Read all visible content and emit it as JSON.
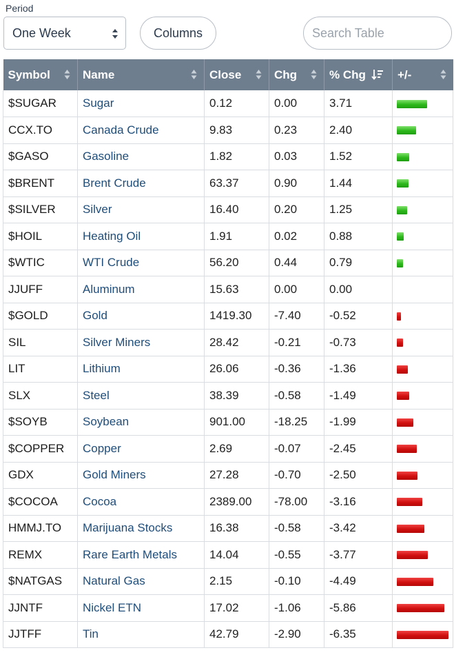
{
  "controls": {
    "period_label": "Period",
    "period_value": "One Week",
    "columns_label": "Columns",
    "search_placeholder": "Search Table"
  },
  "table": {
    "headers": [
      "Symbol",
      "Name",
      "Close",
      "Chg",
      "% Chg",
      "+/-"
    ],
    "sorted_column": "% Chg",
    "sort_direction": "descending",
    "colors": {
      "up": "#2db81b",
      "down": "#d10f0f",
      "header_bg": "#6f7e8e",
      "name_link": "#1f4d7a"
    },
    "rows": [
      {
        "symbol": "$SUGAR",
        "name": "Sugar",
        "close": "0.12",
        "chg": "0.00",
        "pct": "3.71"
      },
      {
        "symbol": "CCX.TO",
        "name": "Canada Crude",
        "close": "9.83",
        "chg": "0.23",
        "pct": "2.40"
      },
      {
        "symbol": "$GASO",
        "name": "Gasoline",
        "close": "1.82",
        "chg": "0.03",
        "pct": "1.52"
      },
      {
        "symbol": "$BRENT",
        "name": "Brent Crude",
        "close": "63.37",
        "chg": "0.90",
        "pct": "1.44"
      },
      {
        "symbol": "$SILVER",
        "name": "Silver",
        "close": "16.40",
        "chg": "0.20",
        "pct": "1.25"
      },
      {
        "symbol": "$HOIL",
        "name": "Heating Oil",
        "close": "1.91",
        "chg": "0.02",
        "pct": "0.88"
      },
      {
        "symbol": "$WTIC",
        "name": "WTI Crude",
        "close": "56.20",
        "chg": "0.44",
        "pct": "0.79"
      },
      {
        "symbol": "JJUFF",
        "name": "Aluminum",
        "close": "15.63",
        "chg": "0.00",
        "pct": "0.00"
      },
      {
        "symbol": "$GOLD",
        "name": "Gold",
        "close": "1419.30",
        "chg": "-7.40",
        "pct": "-0.52"
      },
      {
        "symbol": "SIL",
        "name": "Silver Miners",
        "close": "28.42",
        "chg": "-0.21",
        "pct": "-0.73"
      },
      {
        "symbol": "LIT",
        "name": "Lithium",
        "close": "26.06",
        "chg": "-0.36",
        "pct": "-1.36"
      },
      {
        "symbol": "SLX",
        "name": "Steel",
        "close": "38.39",
        "chg": "-0.58",
        "pct": "-1.49"
      },
      {
        "symbol": "$SOYB",
        "name": "Soybean",
        "close": "901.00",
        "chg": "-18.25",
        "pct": "-1.99"
      },
      {
        "symbol": "$COPPER",
        "name": "Copper",
        "close": "2.69",
        "chg": "-0.07",
        "pct": "-2.45"
      },
      {
        "symbol": "GDX",
        "name": "Gold Miners",
        "close": "27.28",
        "chg": "-0.70",
        "pct": "-2.50"
      },
      {
        "symbol": "$COCOA",
        "name": "Cocoa",
        "close": "2389.00",
        "chg": "-78.00",
        "pct": "-3.16"
      },
      {
        "symbol": "HMMJ.TO",
        "name": "Marijuana Stocks",
        "close": "16.38",
        "chg": "-0.58",
        "pct": "-3.42"
      },
      {
        "symbol": "REMX",
        "name": "Rare Earth Metals",
        "close": "14.04",
        "chg": "-0.55",
        "pct": "-3.77"
      },
      {
        "symbol": "$NATGAS",
        "name": "Natural Gas",
        "close": "2.15",
        "chg": "-0.10",
        "pct": "-4.49"
      },
      {
        "symbol": "JJNTF",
        "name": "Nickel ETN",
        "close": "17.02",
        "chg": "-1.06",
        "pct": "-5.86"
      },
      {
        "symbol": "JJTFF",
        "name": "Tin",
        "close": "42.79",
        "chg": "-2.90",
        "pct": "-6.35"
      }
    ]
  }
}
